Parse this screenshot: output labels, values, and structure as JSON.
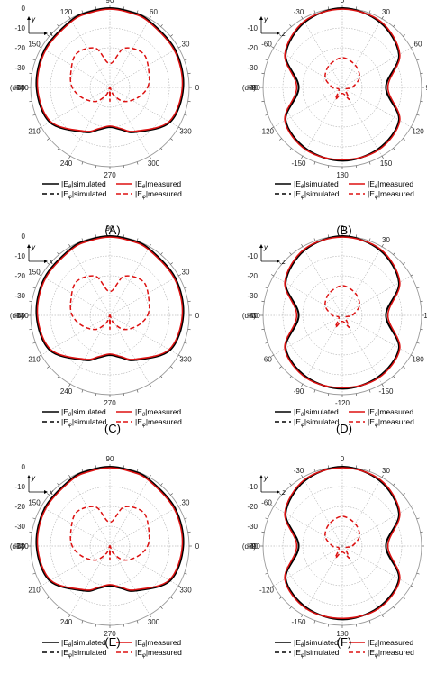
{
  "chart_data": [
    {
      "panel_label": "(A)",
      "type": "polar",
      "radial_axis_label": "(dB)",
      "radial_ticks": [
        "0",
        "-10",
        "-20",
        "-30",
        "-40"
      ],
      "angle_ticks": [
        "90",
        "60",
        "30",
        "0",
        "330",
        "300",
        "270",
        "240",
        "210",
        "180",
        "150",
        "120"
      ],
      "angle_tick_values": [
        90,
        60,
        30,
        0,
        330,
        300,
        270,
        240,
        210,
        180,
        150,
        120
      ],
      "rlim": [
        -40,
        0
      ],
      "coord_axes": {
        "vertical": "y",
        "horizontal": "x"
      },
      "legend": [
        "|E_θ|simulated",
        "|E_θ|measured",
        "|E_φ|simulated",
        "|E_φ|measured"
      ],
      "series": [
        {
          "style": "black-solid",
          "angles": [
            0,
            30,
            60,
            75,
            90,
            105,
            120,
            150,
            180,
            210,
            240,
            255,
            270,
            285,
            300,
            330
          ],
          "values": [
            -3,
            -2,
            -1,
            -0.5,
            0,
            -0.5,
            -1,
            -2,
            -3,
            -5,
            -14,
            -18,
            -20,
            -18,
            -14,
            -5
          ]
        },
        {
          "style": "red-solid",
          "angles": [
            0,
            30,
            60,
            75,
            90,
            105,
            120,
            150,
            180,
            210,
            240,
            255,
            270,
            285,
            300,
            330
          ],
          "values": [
            -3.5,
            -2.5,
            -1.5,
            -1,
            -0.5,
            -1,
            -1.5,
            -2.5,
            -3.5,
            -5.5,
            -14.5,
            -18.5,
            -20.5,
            -18.5,
            -14.5,
            -5.5
          ]
        },
        {
          "style": "red-dashed",
          "angles": [
            0,
            20,
            45,
            70,
            90,
            110,
            135,
            160,
            180,
            200,
            225,
            245,
            260,
            270,
            280,
            295,
            315,
            340
          ],
          "values": [
            -21,
            -19,
            -16,
            -19,
            -28,
            -19,
            -16,
            -19,
            -21,
            -25,
            -30,
            -36,
            -40,
            -33,
            -40,
            -36,
            -30,
            -25
          ]
        }
      ]
    },
    {
      "panel_label": "(B)",
      "type": "polar",
      "radial_axis_label": "(dB)",
      "radial_ticks": [
        "-10",
        "-20",
        "-30",
        "-40"
      ],
      "angle_ticks": [
        "0",
        "30",
        "60",
        "90",
        "120",
        "150",
        "180",
        "-150",
        "-120",
        "-90",
        "-60",
        "-30"
      ],
      "angle_tick_values": [
        90,
        60,
        30,
        0,
        -30,
        -60,
        -90,
        -120,
        -150,
        180,
        150,
        120
      ],
      "rlim": [
        -40,
        0
      ],
      "coord_axes": {
        "vertical": "y",
        "horizontal": "z"
      },
      "legend": [
        "|E_θ|simulated",
        "|E_θ|measured",
        "|E_φ|simulated",
        "|E_φ|measured"
      ],
      "series": [
        {
          "style": "black-solid",
          "angles": [
            0,
            30,
            60,
            90,
            120,
            150,
            180,
            -150,
            -120,
            -90,
            -60,
            -30
          ],
          "values": [
            -18,
            -7,
            -2,
            0,
            -2,
            -7,
            -18,
            -7,
            -4,
            -3,
            -4,
            -7
          ]
        },
        {
          "style": "red-solid",
          "angles": [
            0,
            30,
            60,
            90,
            120,
            150,
            180,
            -150,
            -120,
            -90,
            -60,
            -30
          ],
          "values": [
            -17,
            -6.5,
            -1.5,
            -0.5,
            -1.5,
            -6.5,
            -17,
            -6.5,
            -3.5,
            -3.5,
            -3.5,
            -6.5
          ]
        },
        {
          "style": "red-dashed",
          "angles": [
            0,
            30,
            60,
            90,
            120,
            150,
            180,
            -150,
            -120,
            -90,
            -60,
            -30
          ],
          "values": [
            -35,
            -30,
            -27,
            -25,
            -27,
            -30,
            -35,
            -38,
            -33,
            -37,
            -33,
            -38
          ]
        }
      ]
    },
    {
      "panel_label": "(C)",
      "type": "polar",
      "radial_axis_label": "(dB)",
      "radial_ticks": [
        "0",
        "-10",
        "-20",
        "-30",
        "-40"
      ],
      "angle_ticks": [
        "90",
        "30",
        "0",
        "330",
        "270",
        "240",
        "210",
        "180",
        "150"
      ],
      "angle_tick_values": [
        90,
        30,
        0,
        330,
        270,
        240,
        210,
        180,
        150
      ],
      "rlim": [
        -40,
        0
      ],
      "coord_axes": {
        "vertical": "y",
        "horizontal": "x"
      },
      "legend": [
        "|E_θ|simulated",
        "|E_θ|measured",
        "|E_φ|simulated",
        "|E_φ|measured"
      ],
      "series": [
        {
          "style": "black-solid",
          "angles": [
            0,
            30,
            60,
            75,
            90,
            105,
            120,
            150,
            180,
            210,
            240,
            255,
            270,
            285,
            300,
            330
          ],
          "values": [
            -3,
            -2,
            -1,
            -0.5,
            0,
            -0.5,
            -1,
            -2,
            -3,
            -5,
            -14,
            -18,
            -20,
            -18,
            -14,
            -5
          ]
        },
        {
          "style": "red-solid",
          "angles": [
            0,
            30,
            60,
            75,
            90,
            105,
            120,
            150,
            180,
            210,
            240,
            255,
            270,
            285,
            300,
            330
          ],
          "values": [
            -3.5,
            -2.5,
            -1.5,
            -1,
            -0.5,
            -1,
            -1.5,
            -2.5,
            -3.5,
            -5.5,
            -14.5,
            -18.5,
            -20.5,
            -18.5,
            -14.5,
            -5.5
          ]
        },
        {
          "style": "red-dashed",
          "angles": [
            0,
            20,
            45,
            70,
            90,
            110,
            135,
            160,
            180,
            200,
            225,
            245,
            260,
            270,
            280,
            295,
            315,
            340
          ],
          "values": [
            -21,
            -19,
            -16,
            -19,
            -28,
            -19,
            -16,
            -19,
            -21,
            -25,
            -30,
            -36,
            -40,
            -33,
            -40,
            -36,
            -30,
            -25
          ]
        }
      ]
    },
    {
      "panel_label": "(D)",
      "type": "polar",
      "radial_axis_label": "(dB)",
      "radial_ticks": [
        "-10",
        "-20",
        "-30",
        "-40"
      ],
      "angle_ticks": [
        "0",
        "30",
        "150",
        "180",
        "-150",
        "-120",
        "-90",
        "-60",
        "-30"
      ],
      "angle_tick_values": [
        90,
        60,
        0,
        -30,
        -60,
        -90,
        -120,
        -150,
        180
      ],
      "rlim": [
        -40,
        0
      ],
      "coord_axes": {
        "vertical": "y",
        "horizontal": "z"
      },
      "legend": [
        "|E_θ|simulated",
        "|E_θ|measured",
        "|E_φ|simulated",
        "|E_φ|measured"
      ],
      "series": [
        {
          "style": "black-solid",
          "angles": [
            0,
            30,
            60,
            90,
            120,
            150,
            180,
            -150,
            -120,
            -90,
            -60,
            -30
          ],
          "values": [
            -18,
            -7,
            -2,
            0,
            -2,
            -7,
            -18,
            -7,
            -4,
            -3,
            -4,
            -7
          ]
        },
        {
          "style": "red-solid",
          "angles": [
            0,
            30,
            60,
            90,
            120,
            150,
            180,
            -150,
            -120,
            -90,
            -60,
            -30
          ],
          "values": [
            -17,
            -6.5,
            -1.5,
            -0.5,
            -1.5,
            -6.5,
            -17,
            -6.5,
            -3.5,
            -3.5,
            -3.5,
            -6.5
          ]
        },
        {
          "style": "red-dashed",
          "angles": [
            0,
            30,
            60,
            90,
            120,
            150,
            180,
            -150,
            -120,
            -90,
            -60,
            -30
          ],
          "values": [
            -35,
            -30,
            -27,
            -25,
            -27,
            -30,
            -35,
            -38,
            -33,
            -37,
            -33,
            -38
          ]
        }
      ]
    },
    {
      "panel_label": "(E)",
      "type": "polar",
      "radial_axis_label": "(dB)",
      "radial_ticks": [
        "0",
        "-10",
        "-20",
        "-30",
        "-40"
      ],
      "angle_ticks": [
        "90",
        "30",
        "0",
        "330",
        "300",
        "270",
        "240",
        "210",
        "180",
        "150"
      ],
      "angle_tick_values": [
        90,
        30,
        0,
        330,
        300,
        270,
        240,
        210,
        180,
        150
      ],
      "rlim": [
        -40,
        0
      ],
      "coord_axes": {
        "vertical": "y",
        "horizontal": "x"
      },
      "legend": [
        "|E_θ|simulated",
        "|E_θ|measured",
        "|E_φ|simulated",
        "|E_φ|measured"
      ],
      "series": [
        {
          "style": "black-solid",
          "angles": [
            0,
            30,
            60,
            75,
            90,
            105,
            120,
            150,
            180,
            210,
            240,
            255,
            270,
            285,
            300,
            330
          ],
          "values": [
            -3,
            -2,
            -1,
            -0.5,
            0,
            -0.5,
            -1,
            -2,
            -3,
            -5,
            -14,
            -18,
            -20,
            -18,
            -14,
            -5
          ]
        },
        {
          "style": "red-solid",
          "angles": [
            0,
            30,
            60,
            75,
            90,
            105,
            120,
            150,
            180,
            210,
            240,
            255,
            270,
            285,
            300,
            330
          ],
          "values": [
            -3.5,
            -2.5,
            -1.5,
            -1,
            -0.5,
            -1,
            -1.5,
            -2.5,
            -3.5,
            -5.5,
            -14.5,
            -18.5,
            -20.5,
            -18.5,
            -14.5,
            -5.5
          ]
        },
        {
          "style": "red-dashed",
          "angles": [
            0,
            20,
            45,
            70,
            90,
            110,
            135,
            160,
            180,
            200,
            225,
            245,
            260,
            270,
            280,
            295,
            315,
            340
          ],
          "values": [
            -21,
            -19,
            -16,
            -19,
            -28,
            -19,
            -16,
            -19,
            -21,
            -25,
            -30,
            -36,
            -40,
            -33,
            -40,
            -36,
            -30,
            -25
          ]
        }
      ]
    },
    {
      "panel_label": "(F)",
      "type": "polar",
      "radial_axis_label": "(dB)",
      "radial_ticks": [
        "-10",
        "-20",
        "-30",
        "-40"
      ],
      "angle_ticks": [
        "0",
        "30",
        "180",
        "-150",
        "-120",
        "-90",
        "-60",
        "-30"
      ],
      "angle_tick_values": [
        90,
        60,
        -90,
        -120,
        -150,
        180,
        150,
        120
      ],
      "rlim": [
        -40,
        0
      ],
      "coord_axes": {
        "vertical": "y",
        "horizontal": "z"
      },
      "legend": [
        "|E_θ|simulated",
        "|E_θ|measured",
        "|E_φ|simulated",
        "|E_φ|measured"
      ],
      "series": [
        {
          "style": "black-solid",
          "angles": [
            0,
            30,
            60,
            90,
            120,
            150,
            180,
            -150,
            -120,
            -90,
            -60,
            -30
          ],
          "values": [
            -18,
            -7,
            -2,
            0,
            -2,
            -7,
            -18,
            -7,
            -4,
            -3,
            -4,
            -7
          ]
        },
        {
          "style": "red-solid",
          "angles": [
            0,
            30,
            60,
            90,
            120,
            150,
            180,
            -150,
            -120,
            -90,
            -60,
            -30
          ],
          "values": [
            -17,
            -6.5,
            -1.5,
            -0.5,
            -1.5,
            -6.5,
            -17,
            -6.5,
            -3.5,
            -3.5,
            -3.5,
            -6.5
          ]
        },
        {
          "style": "red-dashed",
          "angles": [
            0,
            30,
            60,
            90,
            120,
            150,
            180,
            -150,
            -120,
            -90,
            -60,
            -30
          ],
          "values": [
            -35,
            -30,
            -27,
            -25,
            -27,
            -30,
            -35,
            -38,
            -33,
            -37,
            -33,
            -38
          ]
        }
      ]
    }
  ]
}
